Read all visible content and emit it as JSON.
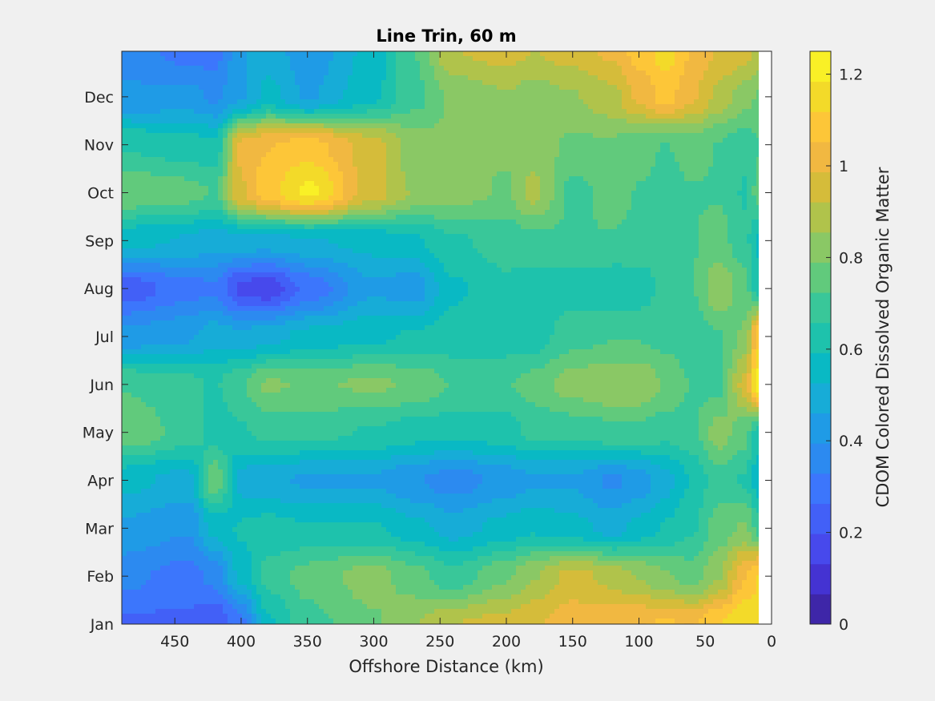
{
  "chart_data": {
    "type": "heatmap",
    "title": "Line Trin, 60 m",
    "xlabel": "Offshore Distance (km)",
    "colorbar_label": "CDOM Colored Dissolved Organic Matter",
    "x_ticks": [
      "450",
      "400",
      "350",
      "300",
      "250",
      "200",
      "150",
      "100",
      "50",
      "0"
    ],
    "x_tick_values": [
      450,
      400,
      350,
      300,
      250,
      200,
      150,
      100,
      50,
      0
    ],
    "xlim": [
      490,
      0
    ],
    "x_reversed": true,
    "y_ticks": [
      "Jan",
      "Feb",
      "Mar",
      "Apr",
      "May",
      "Jun",
      "Jul",
      "Aug",
      "Sep",
      "Oct",
      "Nov",
      "Dec"
    ],
    "y_tick_values": [
      1,
      2,
      3,
      4,
      5,
      6,
      7,
      8,
      9,
      10,
      11,
      12
    ],
    "ylim": [
      1,
      12.95
    ],
    "colorbar_ticks": [
      "0",
      "0.2",
      "0.4",
      "0.6",
      "0.8",
      "1",
      "1.2"
    ],
    "colorbar_tick_values": [
      0,
      0.2,
      0.4,
      0.6,
      0.8,
      1.0,
      1.2
    ],
    "clim": [
      0,
      1.25
    ],
    "colormap": "parula",
    "colormap_colors": [
      "#3e26a8",
      "#4433d2",
      "#4749ec",
      "#4260f7",
      "#3c76fc",
      "#2c8af0",
      "#1f9be6",
      "#17acd7",
      "#09b9c4",
      "#1ec2ac",
      "#39c799",
      "#61ca7c",
      "#8ac865",
      "#b0c34b",
      "#d5bc3a",
      "#f1b841",
      "#fdc638",
      "#f3da29",
      "#f9f026"
    ],
    "data_extent_x": [
      490,
      10
    ],
    "y_grid_months": [
      1,
      2,
      3,
      4,
      5,
      6,
      7,
      8,
      9,
      10,
      11,
      12,
      12.95
    ],
    "x_grid_km": [
      490,
      440,
      420,
      400,
      380,
      350,
      300,
      270,
      240,
      200,
      180,
      150,
      120,
      100,
      80,
      60,
      40,
      20,
      10
    ],
    "values": [
      [
        0.25,
        0.25,
        0.2,
        0.3,
        0.58,
        0.7,
        0.78,
        0.85,
        0.92,
        0.95,
        0.98,
        1.02,
        1.03,
        1.05,
        1.06,
        1.05,
        1.12,
        1.18,
        1.15
      ],
      [
        0.35,
        0.3,
        0.35,
        0.55,
        0.68,
        0.75,
        0.82,
        0.75,
        0.68,
        0.78,
        0.85,
        0.95,
        0.9,
        0.85,
        0.8,
        0.75,
        0.85,
        1.05,
        1.12
      ],
      [
        0.45,
        0.4,
        0.55,
        0.6,
        0.62,
        0.6,
        0.6,
        0.55,
        0.5,
        0.55,
        0.58,
        0.55,
        0.5,
        0.55,
        0.6,
        0.65,
        0.75,
        0.8,
        0.7
      ],
      [
        0.55,
        0.5,
        0.78,
        0.5,
        0.48,
        0.45,
        0.45,
        0.4,
        0.36,
        0.42,
        0.45,
        0.45,
        0.38,
        0.42,
        0.5,
        0.6,
        0.7,
        0.65,
        0.55
      ],
      [
        0.78,
        0.7,
        0.62,
        0.65,
        0.68,
        0.68,
        0.65,
        0.62,
        0.62,
        0.62,
        0.68,
        0.68,
        0.7,
        0.7,
        0.68,
        0.7,
        0.82,
        0.75,
        0.62
      ],
      [
        0.72,
        0.68,
        0.65,
        0.72,
        0.8,
        0.78,
        0.8,
        0.78,
        0.72,
        0.72,
        0.75,
        0.82,
        0.85,
        0.85,
        0.78,
        0.72,
        0.7,
        0.95,
        1.22
      ],
      [
        0.42,
        0.45,
        0.5,
        0.48,
        0.5,
        0.55,
        0.58,
        0.6,
        0.62,
        0.62,
        0.62,
        0.7,
        0.72,
        0.72,
        0.7,
        0.68,
        0.72,
        0.8,
        1.1
      ],
      [
        0.22,
        0.3,
        0.32,
        0.18,
        0.15,
        0.28,
        0.45,
        0.42,
        0.58,
        0.65,
        0.62,
        0.62,
        0.6,
        0.62,
        0.68,
        0.72,
        0.85,
        0.75,
        0.62
      ],
      [
        0.55,
        0.52,
        0.48,
        0.5,
        0.5,
        0.52,
        0.55,
        0.58,
        0.65,
        0.68,
        0.7,
        0.72,
        0.72,
        0.7,
        0.7,
        0.72,
        0.75,
        0.68,
        0.58
      ],
      [
        0.78,
        0.75,
        0.72,
        0.98,
        1.1,
        1.2,
        0.95,
        0.85,
        0.82,
        0.78,
        0.88,
        0.7,
        0.75,
        0.72,
        0.7,
        0.72,
        0.72,
        0.65,
        0.75
      ],
      [
        0.65,
        0.62,
        0.6,
        1.0,
        1.05,
        1.08,
        0.95,
        0.82,
        0.8,
        0.8,
        0.82,
        0.78,
        0.78,
        0.75,
        0.72,
        0.75,
        0.72,
        0.68,
        0.72
      ],
      [
        0.4,
        0.42,
        0.38,
        0.45,
        0.55,
        0.45,
        0.58,
        0.7,
        0.8,
        0.85,
        0.82,
        0.85,
        0.9,
        1.0,
        1.08,
        1.0,
        0.9,
        0.82,
        0.78
      ],
      [
        0.38,
        0.3,
        0.3,
        0.45,
        0.5,
        0.42,
        0.55,
        0.72,
        0.92,
        0.95,
        0.92,
        0.95,
        1.0,
        1.08,
        1.15,
        1.05,
        0.98,
        0.95,
        0.9
      ]
    ]
  }
}
